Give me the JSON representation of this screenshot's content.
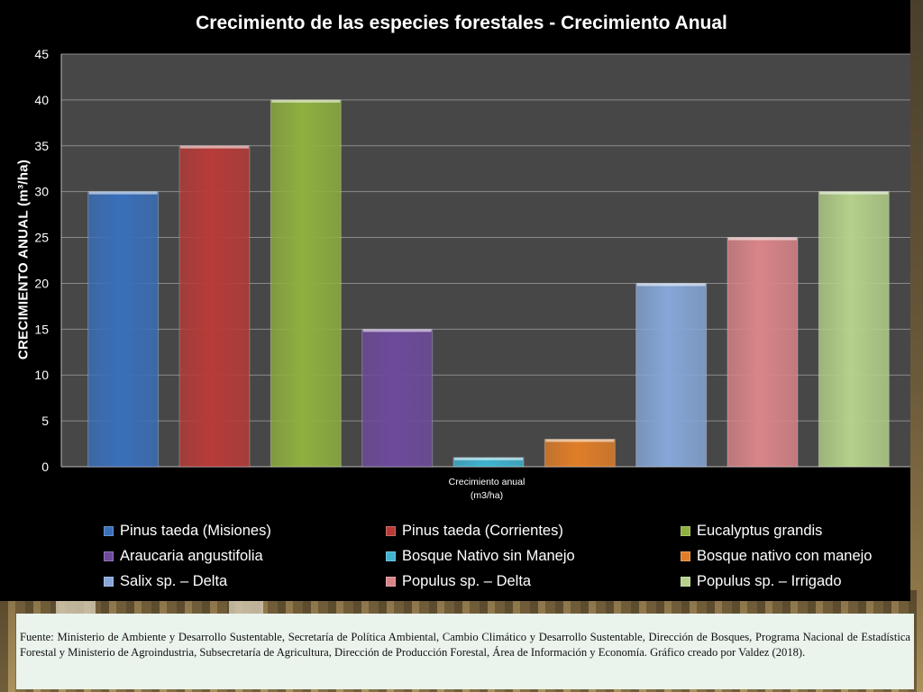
{
  "chart_data": {
    "type": "bar",
    "title": "Crecimiento de las especies forestales - Crecimiento  Anual",
    "ylabel": "CRECIMIENTO ANUAL (m³/ha)",
    "xlabel": "Crecimiento anual\n(m3/ha)",
    "xlabel_lines": [
      "Crecimiento anual",
      "(m3/ha)"
    ],
    "ylim": [
      0,
      45
    ],
    "yticks": [
      0,
      5,
      10,
      15,
      20,
      25,
      30,
      35,
      40,
      45
    ],
    "grid": true,
    "legend_position": "bottom",
    "series": [
      {
        "name": "Pinus taeda (Misiones)",
        "values": [
          30
        ],
        "color": "#3a6fba"
      },
      {
        "name": "Pinus taeda (Corrientes)",
        "values": [
          35
        ],
        "color": "#b83b38"
      },
      {
        "name": "Eucalyptus grandis",
        "values": [
          40
        ],
        "color": "#8fb03f"
      },
      {
        "name": "Araucaria angustifolia",
        "values": [
          15
        ],
        "color": "#6e4a9c"
      },
      {
        "name": "Bosque Nativo sin Manejo",
        "values": [
          1
        ],
        "color": "#3fb3cf"
      },
      {
        "name": "Bosque nativo con manejo",
        "values": [
          3
        ],
        "color": "#e07e28"
      },
      {
        "name": "Salix sp. – Delta",
        "values": [
          20
        ],
        "color": "#86a7d8"
      },
      {
        "name": "Populus sp. – Delta",
        "values": [
          25
        ],
        "color": "#d98588"
      },
      {
        "name": "Populus sp. – Irrigado",
        "values": [
          30
        ],
        "color": "#b4d08a"
      }
    ]
  },
  "colors": {
    "plot_background": "#474747",
    "gridline": "#8a8a8a",
    "panel_background": "#000000",
    "source_background": "#eaf3ec"
  },
  "source": {
    "text": "Fuente: Ministerio de Ambiente y Desarrollo Sustentable, Secretaría de Política Ambiental, Cambio Climático y Desarrollo Sustentable, Dirección de Bosques, Programa Nacional de Estadística Forestal y Ministerio de Agroindustria, Subsecretaría de Agricultura, Dirección de Producción Forestal,  Área de Información y Economía. Gráfico creado por Valdez (2018)."
  }
}
